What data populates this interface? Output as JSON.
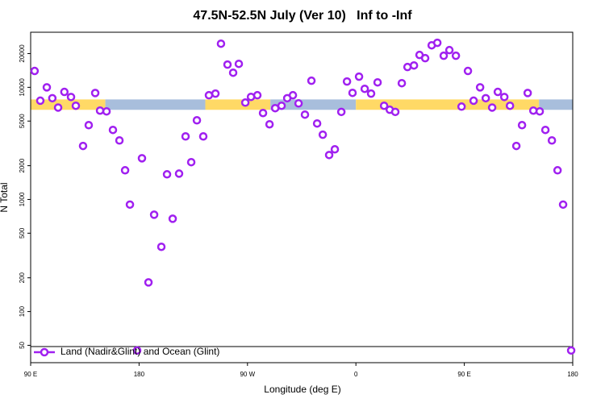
{
  "chart_data": {
    "type": "scatter",
    "title": "47.5N-52.5N July (Ver 10)   Inf to -Inf",
    "x_label": "Longitude (deg E)",
    "y_label": "N Total",
    "xlim": [
      90,
      540
    ],
    "xticks": [
      {
        "value": 90,
        "label": "90 E"
      },
      180,
      {
        "value": 270,
        "label": "90 W"
      },
      {
        "value": 360,
        "label": "0"
      },
      {
        "value": 450,
        "label": "90 E"
      },
      {
        "value": 540,
        "label": "180"
      }
    ],
    "ylim": [
      35,
      31000
    ],
    "log_y": true,
    "yticks": [
      50,
      100,
      200,
      500,
      1000,
      2000,
      5000,
      10000,
      20000
    ],
    "legend": "lower left",
    "band": {
      "ylim": [
        6300,
        7800
      ],
      "segments": [
        {
          "x": [
            90,
            152
          ],
          "color": "#ffd966"
        },
        {
          "x": [
            152,
            235
          ],
          "color": "#a8bedc"
        },
        {
          "x": [
            235,
            289
          ],
          "color": "#ffd966"
        },
        {
          "x": [
            289,
            360
          ],
          "color": "#a8bedc"
        },
        {
          "x": [
            360,
            512
          ],
          "color": "#ffd966"
        },
        {
          "x": [
            512,
            540
          ],
          "color": "#a8bedc"
        }
      ]
    },
    "series": [
      {
        "name": "Land (Nadir&Glint) and Ocean (Glint)",
        "color": "#a020f0",
        "x": [
          93.3,
          98,
          103.4,
          108,
          112.8,
          118,
          123.5,
          127.5,
          133.5,
          138.2,
          143.6,
          147.6,
          153,
          158.3,
          163.7,
          168.4,
          172.4,
          178.4,
          182.4,
          187.8,
          192.5,
          198.5,
          203.2,
          207.9,
          213.2,
          218.6,
          223.3,
          228,
          233.3,
          238,
          243.4,
          248,
          253.4,
          258.1,
          262.8,
          268.2,
          272.9,
          278.2,
          282.9,
          288.3,
          293,
          298.3,
          303,
          307.7,
          312.4,
          317.7,
          323.1,
          327.8,
          332.5,
          337.8,
          342.5,
          347.9,
          352.6,
          357.2,
          362.6,
          367.3,
          372.6,
          378,
          383.4,
          388.1,
          392.7,
          398.1,
          402.8,
          408.2,
          412.8,
          417.5,
          422.9,
          427.6,
          432.9,
          437.6,
          443,
          447.7,
          453,
          457.7,
          463.1,
          467.8,
          473.1,
          477.8,
          483.2,
          487.9,
          493.2,
          497.9,
          502.6,
          507.3,
          512.6,
          517.3,
          522.7,
          527.4,
          532,
          538.7
        ],
        "values": [
          14000,
          7600,
          10000,
          8000,
          6600,
          9100,
          8200,
          6850,
          3000,
          4600,
          8900,
          6200,
          6100,
          4170,
          3360,
          1820,
          900,
          45,
          2330,
          182,
          731,
          378,
          1675,
          673,
          1700,
          3650,
          2150,
          5080,
          3650,
          8500,
          8790,
          24500,
          15950,
          13500,
          16200,
          7310,
          8220,
          8500,
          5900,
          4680,
          6520,
          6850,
          8000,
          8500,
          7190,
          5710,
          11450,
          4760,
          3780,
          2490,
          2800,
          6040,
          11270,
          8930,
          12450,
          9700,
          8790,
          11070,
          6850,
          6310,
          6040,
          10890,
          15170,
          15670,
          19450,
          18200,
          23700,
          24950,
          19140,
          21480,
          19140,
          6730,
          14000,
          7600,
          10000,
          8000,
          6600,
          9100,
          8200,
          6850,
          3000,
          4600,
          8900,
          6200,
          6100,
          4170,
          3360,
          1820,
          900,
          45
        ]
      }
    ]
  }
}
